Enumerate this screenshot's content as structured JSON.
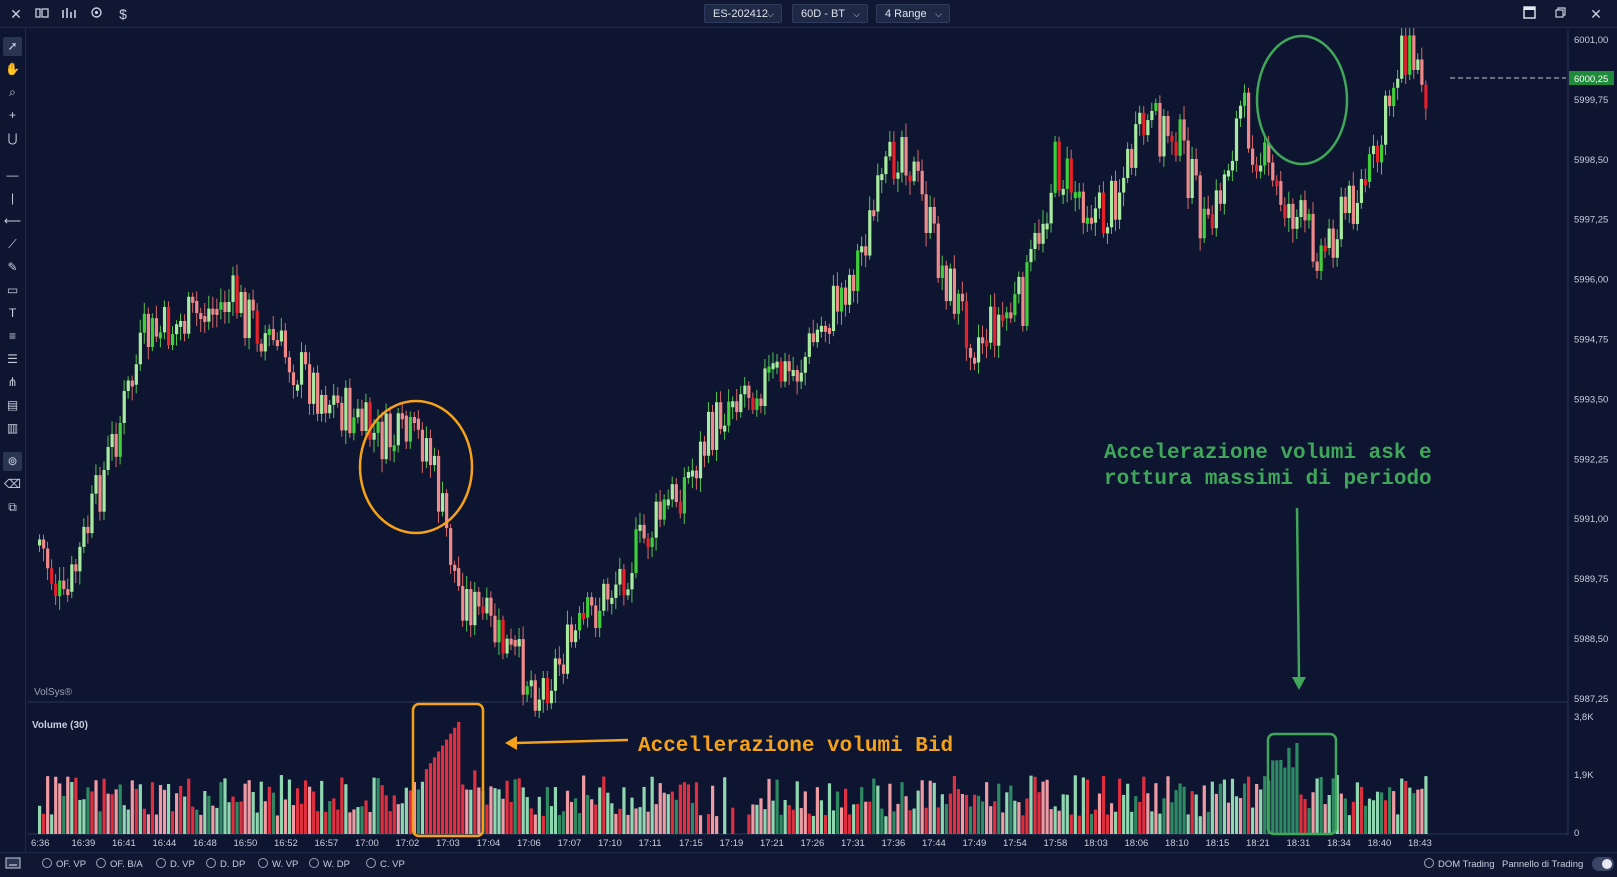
{
  "toolbar": {
    "symbol": "ES-202412",
    "timeframe": "60D - BT",
    "bar_type": "4 Range",
    "left_icons": [
      "close-icon",
      "layout-icon",
      "bar-chart-icon",
      "settings-icon",
      "dollar-icon"
    ],
    "dollar_label": "$",
    "right_icons": [
      "window-icon",
      "restore-icon",
      "close-window-icon"
    ]
  },
  "left_tools": [
    "cursor",
    "hand",
    "zoom",
    "crosshair",
    "magnet",
    "horizontal-line",
    "vertical-line",
    "ray",
    "trend-line",
    "pencil",
    "rectangle",
    "text",
    "fibonacci",
    "parallel-channel",
    "pitchfork",
    "profile-1",
    "profile-2",
    "lock",
    "eraser",
    "layers"
  ],
  "price_panel": {
    "watermark": "VolSys®",
    "current_price": "6000,25",
    "price_ticks": [
      "6001,00",
      "5999,75",
      "5998,50",
      "5997,25",
      "5996,00",
      "5994,75",
      "5993,50",
      "5992,25",
      "5991,00",
      "5989,75",
      "5988,50",
      "5987,25"
    ]
  },
  "volume_panel": {
    "title": "Volume (30)",
    "ticks": [
      "3,8K",
      "1,9K",
      "0"
    ]
  },
  "time_ticks": [
    "6:36",
    "16:39",
    "16:41",
    "16:44",
    "16:48",
    "16:50",
    "16:52",
    "16:57",
    "17:00",
    "17:02",
    "17:03",
    "17:04",
    "17:06",
    "17:07",
    "17:10",
    "17:11",
    "17:15",
    "17:19",
    "17:21",
    "17:26",
    "17:31",
    "17:36",
    "17:44",
    "17:49",
    "17:54",
    "17:58",
    "18:03",
    "18:06",
    "18:10",
    "18:15",
    "18:21",
    "18:31",
    "18:34",
    "18:40",
    "18:43"
  ],
  "annotations": {
    "bid_text": "Accellerazione volumi Bid",
    "ask_text_line1": "Accelerazione volumi ask e",
    "ask_text_line2": "rottura massimi di periodo",
    "orange": "#f5a21a",
    "green": "#3fa65a"
  },
  "colors": {
    "background": "#0d1530",
    "up_strong": "#3fcf3a",
    "up_light": "#a8eba0",
    "down_strong": "#e8202a",
    "down_light": "#f08a8a",
    "vol_green_dark": "#2e8a63",
    "vol_green_light": "#8fd7b0",
    "vol_red": "#e03040",
    "vol_pink": "#ee9ba3"
  },
  "bottom_indicators": [
    "OF. VP",
    "OF. B/A",
    "D. VP",
    "D. DP",
    "W. VP",
    "W. DP",
    "C. VP"
  ],
  "bottom_right": {
    "dom": "DOM Trading",
    "panel": "Pannello di Trading"
  }
}
